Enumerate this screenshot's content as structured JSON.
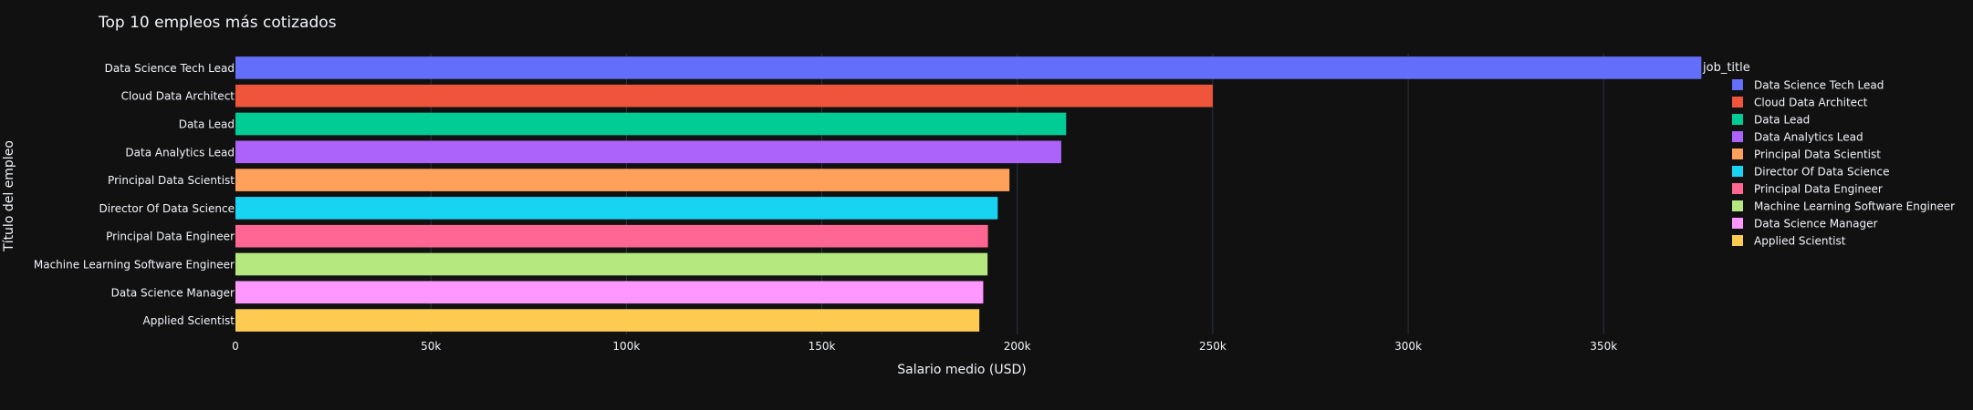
{
  "colors": {
    "background": "#111111",
    "grid": "#283442",
    "text": "#f2f5fa"
  },
  "chart_data": {
    "type": "bar",
    "orientation": "horizontal",
    "title": "Top 10 empleos más cotizados",
    "xlabel": "Salario medio (USD)",
    "ylabel": "Título del empleo",
    "legend_title": "job_title",
    "legend_position": "right",
    "xlim": [
      0,
      395000
    ],
    "x_ticks": [
      {
        "value": 0,
        "label": "0"
      },
      {
        "value": 50000,
        "label": "50k"
      },
      {
        "value": 100000,
        "label": "100k"
      },
      {
        "value": 150000,
        "label": "150k"
      },
      {
        "value": 200000,
        "label": "200k"
      },
      {
        "value": 250000,
        "label": "250k"
      },
      {
        "value": 300000,
        "label": "300k"
      },
      {
        "value": 350000,
        "label": "350k"
      }
    ],
    "grid": true,
    "series": [
      {
        "name": "Data Science Tech Lead",
        "value": 375000,
        "color": "#636efa"
      },
      {
        "name": "Cloud Data Architect",
        "value": 250000,
        "color": "#ef553b"
      },
      {
        "name": "Data Lead",
        "value": 212500,
        "color": "#00cc96"
      },
      {
        "name": "Data Analytics Lead",
        "value": 211250,
        "color": "#ab63fa"
      },
      {
        "name": "Principal Data Scientist",
        "value": 198000,
        "color": "#ffa15a"
      },
      {
        "name": "Director Of Data Science",
        "value": 195000,
        "color": "#19d3f3"
      },
      {
        "name": "Principal Data Engineer",
        "value": 192500,
        "color": "#ff6692"
      },
      {
        "name": "Machine Learning Software Engineer",
        "value": 192400,
        "color": "#b6e880"
      },
      {
        "name": "Data Science Manager",
        "value": 191300,
        "color": "#ff97ff"
      },
      {
        "name": "Applied Scientist",
        "value": 190300,
        "color": "#fecb52"
      }
    ]
  }
}
